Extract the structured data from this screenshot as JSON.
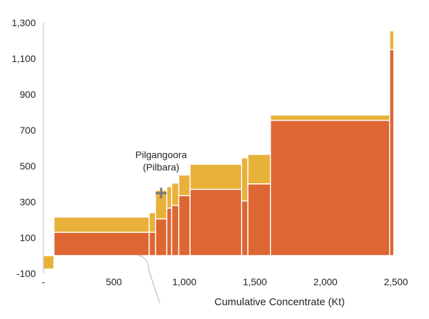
{
  "chart_data": {
    "type": "bar",
    "subtype": "cost-curve-stacked-variable-width",
    "xlabel": "Cumulative Concentrate (Kt)",
    "ylabel": "",
    "xlim": [
      0,
      2500
    ],
    "ylim": [
      -100,
      1300
    ],
    "x_ticks": [
      {
        "value": 0,
        "label": "-"
      },
      {
        "value": 500,
        "label": "500"
      },
      {
        "value": 1000,
        "label": "1,000"
      },
      {
        "value": 1500,
        "label": "1,500"
      },
      {
        "value": 2000,
        "label": "2,000"
      },
      {
        "value": 2500,
        "label": "2,500"
      }
    ],
    "y_ticks": [
      {
        "value": -100,
        "label": "-100"
      },
      {
        "value": 100,
        "label": "100"
      },
      {
        "value": 300,
        "label": "300"
      },
      {
        "value": 500,
        "label": "500"
      },
      {
        "value": 700,
        "label": "700"
      },
      {
        "value": 900,
        "label": "900"
      },
      {
        "value": 1100,
        "label": "1,100"
      },
      {
        "value": 1300,
        "label": "1,300"
      }
    ],
    "grid": false,
    "colors": {
      "lower": "#dd6633",
      "upper": "#e8b13a",
      "divider": "#ffffff",
      "axis": "#bbbbbb",
      "marker": "#777777"
    },
    "series": [
      {
        "key": "lower",
        "values": [
          0,
          130,
          130,
          205,
          265,
          280,
          335,
          370,
          305,
          400,
          755,
          1150
        ]
      },
      {
        "key": "upper",
        "values": [
          -75,
          215,
          240,
          365,
          385,
          405,
          450,
          510,
          545,
          565,
          785,
          1255
        ]
      }
    ],
    "bars": [
      {
        "x0": 0,
        "x1": 75
      },
      {
        "x0": 75,
        "x1": 750
      },
      {
        "x0": 750,
        "x1": 795
      },
      {
        "x0": 795,
        "x1": 875
      },
      {
        "x0": 875,
        "x1": 910
      },
      {
        "x0": 910,
        "x1": 960
      },
      {
        "x0": 960,
        "x1": 1040
      },
      {
        "x0": 1040,
        "x1": 1405
      },
      {
        "x0": 1405,
        "x1": 1450
      },
      {
        "x0": 1450,
        "x1": 1610
      },
      {
        "x0": 1610,
        "x1": 2455
      },
      {
        "x0": 2455,
        "x1": 2485
      }
    ],
    "annotations": [
      {
        "text_lines": [
          "Pilgangoora",
          "(Pilbara)"
        ],
        "x": 835,
        "y": 360
      }
    ]
  }
}
